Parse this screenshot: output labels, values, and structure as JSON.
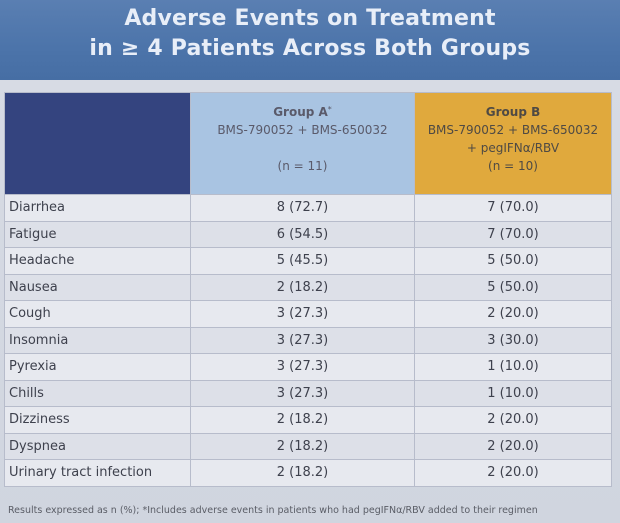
{
  "title": {
    "line1": "Adverse Events on Treatment",
    "line2": "in ≥ 4 Patients Across Both Groups"
  },
  "table": {
    "groupA": {
      "name": "Group A",
      "marker": "*",
      "regimen": "BMS-790052 + BMS-650032",
      "n": "(n = 11)"
    },
    "groupB": {
      "name": "Group B",
      "regimen": "BMS-790052 + BMS-650032",
      "regimen2": "+ pegIFNα/RBV",
      "n": "(n = 10)"
    },
    "rows": [
      {
        "event": "Diarrhea",
        "a": "8 (72.7)",
        "b": "7 (70.0)"
      },
      {
        "event": "Fatigue",
        "a": "6 (54.5)",
        "b": "7 (70.0)"
      },
      {
        "event": "Headache",
        "a": "5 (45.5)",
        "b": "5 (50.0)"
      },
      {
        "event": "Nausea",
        "a": "2 (18.2)",
        "b": "5 (50.0)"
      },
      {
        "event": "Cough",
        "a": "3 (27.3)",
        "b": "2 (20.0)"
      },
      {
        "event": "Insomnia",
        "a": "3 (27.3)",
        "b": "3 (30.0)"
      },
      {
        "event": "Pyrexia",
        "a": "3 (27.3)",
        "b": "1 (10.0)"
      },
      {
        "event": "Chills",
        "a": "3 (27.3)",
        "b": "1 (10.0)"
      },
      {
        "event": "Dizziness",
        "a": "2 (18.2)",
        "b": "2 (20.0)"
      },
      {
        "event": "Dyspnea",
        "a": "2 (18.2)",
        "b": "2 (20.0)"
      },
      {
        "event": "Urinary tract infection",
        "a": "2 (18.2)",
        "b": "2 (20.0)"
      }
    ]
  },
  "footnote": "Results expressed as n (%); *Includes adverse events in patients who had pegIFNα/RBV added to their regimen"
}
